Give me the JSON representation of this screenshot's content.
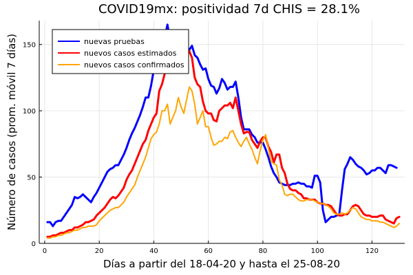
{
  "chart_data": {
    "type": "line",
    "title": "COVID19mx: positividad 7d CHIS = 28.1%",
    "xlabel": "Días a partir del 18-04-20 y hasta el 25-08-20",
    "ylabel": "Número de casos (prom. móvil 7 días)",
    "xlim": [
      -2,
      132
    ],
    "ylim": [
      0,
      168
    ],
    "xticks": [
      0,
      20,
      40,
      60,
      80,
      100,
      120
    ],
    "yticks": [
      0,
      50,
      100,
      150
    ],
    "grid": true,
    "legend_position": "top-left",
    "x_start": 1,
    "series": [
      {
        "name": "nuevas pruebas",
        "color": "#0000ff",
        "values": [
          16,
          16,
          13,
          16,
          17,
          17,
          20,
          23,
          26,
          29,
          35,
          34,
          35,
          37,
          35,
          33,
          31,
          35,
          38,
          42,
          46,
          50,
          54,
          56,
          57,
          59,
          59,
          63,
          67,
          72,
          78,
          83,
          87,
          92,
          97,
          103,
          110,
          110,
          119,
          131,
          138,
          145,
          150,
          155,
          165,
          153,
          148,
          145,
          145,
          147,
          143,
          140,
          146,
          149,
          142,
          140,
          135,
          131,
          132,
          124,
          119,
          118,
          113,
          117,
          124,
          121,
          116,
          118,
          118,
          122,
          110,
          95,
          86,
          86,
          86,
          82,
          80,
          76,
          76,
          76,
          71,
          65,
          58,
          53,
          50,
          46,
          45,
          44,
          44,
          44,
          45,
          45,
          46,
          45,
          45,
          43,
          43,
          42,
          51,
          51,
          46,
          25,
          16,
          18,
          20,
          20,
          21,
          22,
          40,
          56,
          60,
          65,
          63,
          60,
          58,
          57,
          55,
          52,
          53,
          55,
          55,
          57,
          57,
          55,
          53,
          59,
          59,
          58,
          57
        ]
      },
      {
        "name": "nuevos casos estimados",
        "color": "#ff0000",
        "values": [
          5,
          5,
          6,
          6,
          7,
          8,
          8,
          9,
          10,
          10,
          12,
          12,
          13,
          14,
          16,
          16,
          17,
          18,
          21,
          23,
          25,
          27,
          30,
          33,
          35,
          34,
          36,
          39,
          42,
          48,
          52,
          55,
          60,
          65,
          70,
          75,
          78,
          85,
          90,
          95,
          98,
          115,
          120,
          128,
          133,
          136,
          138,
          139,
          141,
          142,
          143,
          144,
          145,
          140,
          125,
          120,
          118,
          107,
          100,
          98,
          98,
          93,
          92,
          100,
          102,
          104,
          104,
          106,
          102,
          110,
          100,
          90,
          83,
          84,
          84,
          78,
          75,
          72,
          77,
          80,
          80,
          73,
          69,
          61,
          67,
          67,
          57,
          53,
          45,
          41,
          40,
          40,
          38,
          37,
          34,
          34,
          33,
          33,
          33,
          31,
          30,
          30,
          29,
          29,
          28,
          25,
          22,
          21,
          21,
          22,
          22,
          25,
          28,
          29,
          28,
          25,
          22,
          21,
          21,
          20,
          20,
          20,
          21,
          21,
          18,
          17,
          16,
          15,
          19,
          20
        ]
      },
      {
        "name": "nuevos casos confirmados",
        "color": "#ffa500",
        "values": [
          4,
          4,
          5,
          5,
          6,
          6,
          7,
          8,
          8,
          9,
          10,
          10,
          11,
          12,
          12,
          13,
          13,
          13,
          14,
          17,
          19,
          21,
          23,
          25,
          26,
          27,
          27,
          29,
          31,
          35,
          38,
          41,
          44,
          50,
          55,
          60,
          65,
          72,
          79,
          82,
          84,
          90,
          100,
          100,
          105,
          90,
          95,
          100,
          110,
          103,
          98,
          108,
          118,
          115,
          105,
          90,
          95,
          100,
          88,
          88,
          80,
          74,
          75,
          77,
          77,
          80,
          79,
          84,
          85,
          80,
          76,
          73,
          77,
          80,
          75,
          71,
          65,
          60,
          70,
          78,
          82,
          72,
          62,
          60,
          59,
          48,
          44,
          37,
          36,
          37,
          37,
          35,
          33,
          32,
          32,
          33,
          33,
          33,
          32,
          31,
          30,
          30,
          29,
          28,
          26,
          23,
          22,
          22,
          23,
          22,
          23,
          25,
          27,
          26,
          23,
          20,
          19,
          18,
          18,
          17,
          17,
          17,
          16,
          16,
          15,
          14,
          13,
          12,
          13,
          15
        ]
      }
    ]
  }
}
